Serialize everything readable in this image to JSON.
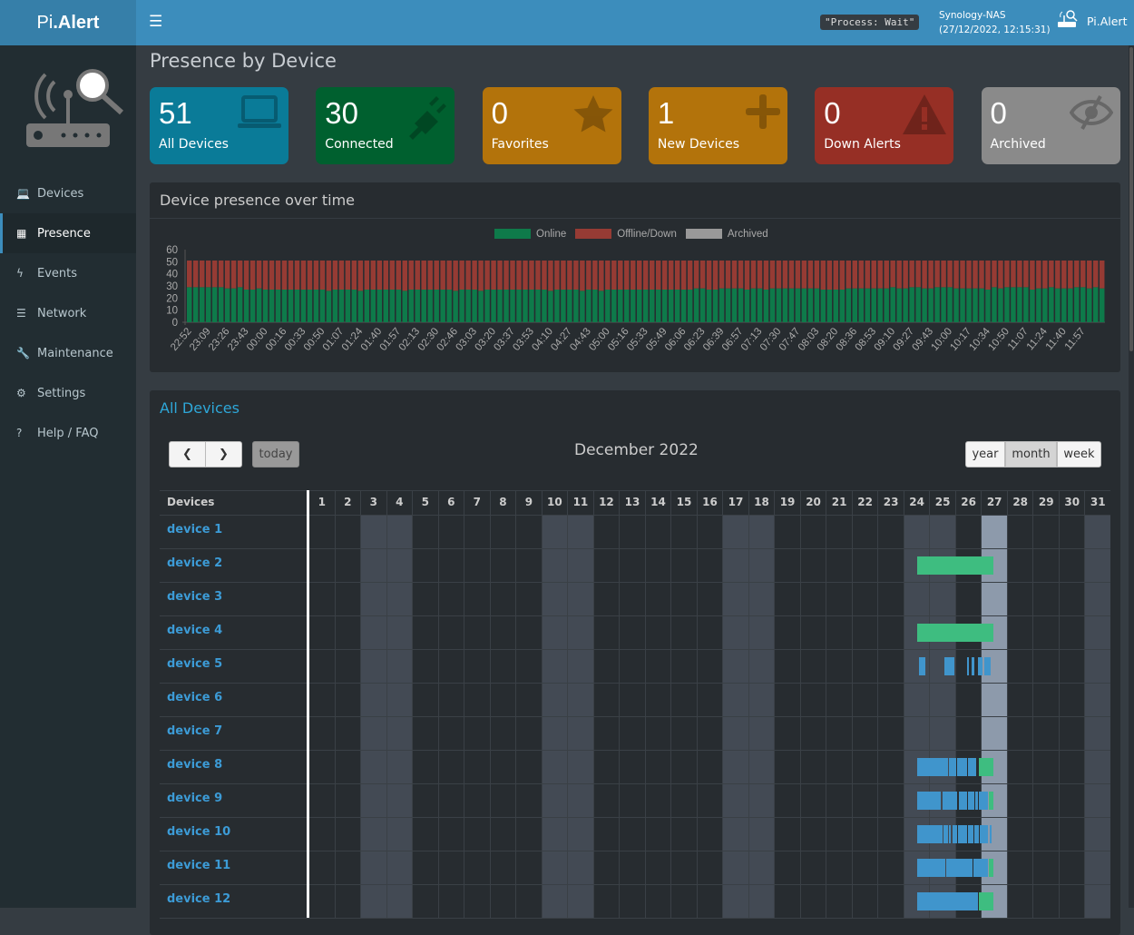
{
  "header": {
    "logo_prefix": "Pi",
    "logo_suffix": ".Alert",
    "process_status": "\"Process: Wait\"",
    "host": "Synology-NAS",
    "datetime": "(27/12/2022, 12:15:31)",
    "user": "Pi.Alert",
    "menu_icon": "bars-icon"
  },
  "sidebar": {
    "items": [
      {
        "label": "Devices",
        "icon": "laptop-icon",
        "glyph": "💻",
        "active": false
      },
      {
        "label": "Presence",
        "icon": "calendar-icon",
        "glyph": "▦",
        "active": true
      },
      {
        "label": "Events",
        "icon": "bolt-icon",
        "glyph": "ϟ",
        "active": false
      },
      {
        "label": "Network",
        "icon": "server-icon",
        "glyph": "☰",
        "active": false
      },
      {
        "label": "Maintenance",
        "icon": "wrench-icon",
        "glyph": "🔧",
        "active": false
      },
      {
        "label": "Settings",
        "icon": "gear-icon",
        "glyph": "⚙",
        "active": false
      },
      {
        "label": "Help / FAQ",
        "icon": "question-icon",
        "glyph": "?",
        "active": false
      }
    ]
  },
  "page": {
    "title": "Presence by Device"
  },
  "stats": [
    {
      "value": "51",
      "label": "All Devices",
      "color": "#0a7b98",
      "icon": "laptop-icon"
    },
    {
      "value": "30",
      "label": "Connected",
      "color": "#00602f",
      "icon": "plug-icon"
    },
    {
      "value": "0",
      "label": "Favorites",
      "color": "#b3730b",
      "icon": "star-icon"
    },
    {
      "value": "1",
      "label": "New Devices",
      "color": "#b3730b",
      "icon": "plus-icon"
    },
    {
      "value": "0",
      "label": "Down Alerts",
      "color": "#962f25",
      "icon": "warning-icon"
    },
    {
      "value": "0",
      "label": "Archived",
      "color": "#8a8a8a",
      "icon": "eye-slash-icon"
    }
  ],
  "chart_panel": {
    "title": "Device presence over time"
  },
  "chart_data": {
    "type": "bar",
    "stacked": true,
    "ylim": [
      0,
      60
    ],
    "yticks": [
      0,
      10,
      20,
      30,
      40,
      50,
      60
    ],
    "grid": false,
    "legend": "top",
    "series": [
      {
        "name": "Online",
        "color": "#0e7a4a"
      },
      {
        "name": "Offline/Down",
        "color": "#963b34"
      },
      {
        "name": "Archived",
        "color": "#999999"
      }
    ],
    "total": 51,
    "online": [
      29,
      29,
      29,
      29,
      29,
      29,
      28,
      28,
      29,
      27,
      27,
      28,
      27,
      27,
      27,
      27,
      27,
      27,
      27,
      27,
      27,
      27,
      26,
      27,
      27,
      27,
      27,
      26,
      27,
      27,
      27,
      27,
      27,
      27,
      26,
      27,
      27,
      27,
      27,
      27,
      27,
      27,
      26,
      27,
      27,
      27,
      26,
      27,
      27,
      27,
      27,
      27,
      27,
      27,
      27,
      27,
      27,
      26,
      27,
      27,
      27,
      27,
      26,
      27,
      27,
      26,
      27,
      27,
      27,
      27,
      27,
      27,
      27,
      27,
      27,
      27,
      27,
      27,
      27,
      27,
      28,
      28,
      27,
      27,
      28,
      28,
      28,
      28,
      27,
      28,
      28,
      27,
      28,
      28,
      28,
      28,
      28,
      28,
      28,
      28,
      27,
      27,
      27,
      27,
      28,
      28,
      28,
      28,
      28,
      28,
      28,
      29,
      28,
      28,
      29,
      29,
      28,
      28,
      29,
      29,
      29,
      28,
      28,
      28,
      28,
      28,
      27,
      29,
      28,
      29,
      29,
      29,
      29,
      27,
      28,
      28,
      29,
      28,
      28,
      28,
      29,
      29,
      28,
      29,
      28
    ],
    "xticks": [
      "22:52",
      "23:09",
      "23:26",
      "23:43",
      "00:00",
      "00:16",
      "00:33",
      "00:50",
      "01:07",
      "01:24",
      "01:40",
      "01:57",
      "02:13",
      "02:30",
      "02:46",
      "03:03",
      "03:20",
      "03:37",
      "03:53",
      "04:10",
      "04:27",
      "04:43",
      "05:00",
      "05:16",
      "05:33",
      "05:49",
      "06:06",
      "06:23",
      "06:39",
      "06:57",
      "07:13",
      "07:30",
      "07:47",
      "08:03",
      "08:20",
      "08:36",
      "08:53",
      "09:10",
      "09:27",
      "09:43",
      "10:00",
      "10:17",
      "10:34",
      "10:50",
      "11:07",
      "11:24",
      "11:40",
      "11:57"
    ]
  },
  "calendar": {
    "title": "All Devices",
    "month": "December 2022",
    "today_label": "today",
    "prev_icon": "chevron-left-icon",
    "next_icon": "chevron-right-icon",
    "views": [
      {
        "label": "year",
        "active": false
      },
      {
        "label": "month",
        "active": true
      },
      {
        "label": "week",
        "active": false
      }
    ],
    "devices_header": "Devices",
    "days": 31,
    "weekend_days": [
      3,
      4,
      10,
      11,
      17,
      18,
      24,
      25,
      31
    ],
    "today": 27,
    "colors": {
      "weekend": "#434a54",
      "today": "#8d9aab",
      "online": "#3ebd80",
      "event": "#4095cc"
    },
    "devices": [
      {
        "name": "device 1",
        "events": []
      },
      {
        "name": "device 2",
        "events": [
          {
            "from": 24.53,
            "to": 27.47,
            "type": "online"
          }
        ]
      },
      {
        "name": "device 3",
        "events": []
      },
      {
        "name": "device 4",
        "events": [
          {
            "from": 24.53,
            "to": 27.47,
            "type": "online"
          }
        ]
      },
      {
        "name": "device 5",
        "events": [
          {
            "from": 24.6,
            "to": 24.84,
            "type": "event"
          },
          {
            "from": 25.58,
            "to": 25.98,
            "type": "event"
          },
          {
            "from": 26.46,
            "to": 26.53,
            "type": "event"
          },
          {
            "from": 26.63,
            "to": 26.74,
            "type": "event"
          },
          {
            "from": 26.88,
            "to": 27.05,
            "type": "event"
          },
          {
            "from": 27.12,
            "to": 27.37,
            "type": "event"
          }
        ]
      },
      {
        "name": "device 6",
        "events": []
      },
      {
        "name": "device 7",
        "events": []
      },
      {
        "name": "device 8",
        "events": [
          {
            "from": 24.53,
            "to": 25.72,
            "type": "event"
          },
          {
            "from": 25.75,
            "to": 26.04,
            "type": "event"
          },
          {
            "from": 26.07,
            "to": 26.46,
            "type": "event"
          },
          {
            "from": 26.49,
            "to": 26.81,
            "type": "event"
          },
          {
            "from": 26.91,
            "to": 27.47,
            "type": "online"
          }
        ]
      },
      {
        "name": "device 9",
        "events": [
          {
            "from": 24.53,
            "to": 25.44,
            "type": "event"
          },
          {
            "from": 25.51,
            "to": 26.07,
            "type": "event"
          },
          {
            "from": 26.14,
            "to": 26.46,
            "type": "event"
          },
          {
            "from": 26.49,
            "to": 26.74,
            "type": "event"
          },
          {
            "from": 26.77,
            "to": 26.88,
            "type": "event"
          },
          {
            "from": 26.91,
            "to": 27.26,
            "type": "event"
          },
          {
            "from": 27.3,
            "to": 27.47,
            "type": "online"
          }
        ]
      },
      {
        "name": "device 10",
        "events": [
          {
            "from": 24.53,
            "to": 25.51,
            "type": "event"
          },
          {
            "from": 25.54,
            "to": 25.72,
            "type": "event"
          },
          {
            "from": 25.75,
            "to": 25.82,
            "type": "event"
          },
          {
            "from": 25.89,
            "to": 26.07,
            "type": "event"
          },
          {
            "from": 26.11,
            "to": 26.46,
            "type": "event"
          },
          {
            "from": 26.49,
            "to": 26.7,
            "type": "event"
          },
          {
            "from": 26.74,
            "to": 26.91,
            "type": "event"
          },
          {
            "from": 26.95,
            "to": 27.26,
            "type": "event"
          },
          {
            "from": 27.33,
            "to": 27.4,
            "type": "event"
          }
        ]
      },
      {
        "name": "device 11",
        "events": [
          {
            "from": 24.53,
            "to": 25.61,
            "type": "event"
          },
          {
            "from": 25.65,
            "to": 26.67,
            "type": "event"
          },
          {
            "from": 26.7,
            "to": 27.26,
            "type": "event"
          },
          {
            "from": 27.3,
            "to": 27.47,
            "type": "online"
          }
        ]
      },
      {
        "name": "device 12",
        "events": [
          {
            "from": 24.53,
            "to": 26.88,
            "type": "event"
          },
          {
            "from": 26.91,
            "to": 27.47,
            "type": "online"
          }
        ]
      }
    ]
  }
}
